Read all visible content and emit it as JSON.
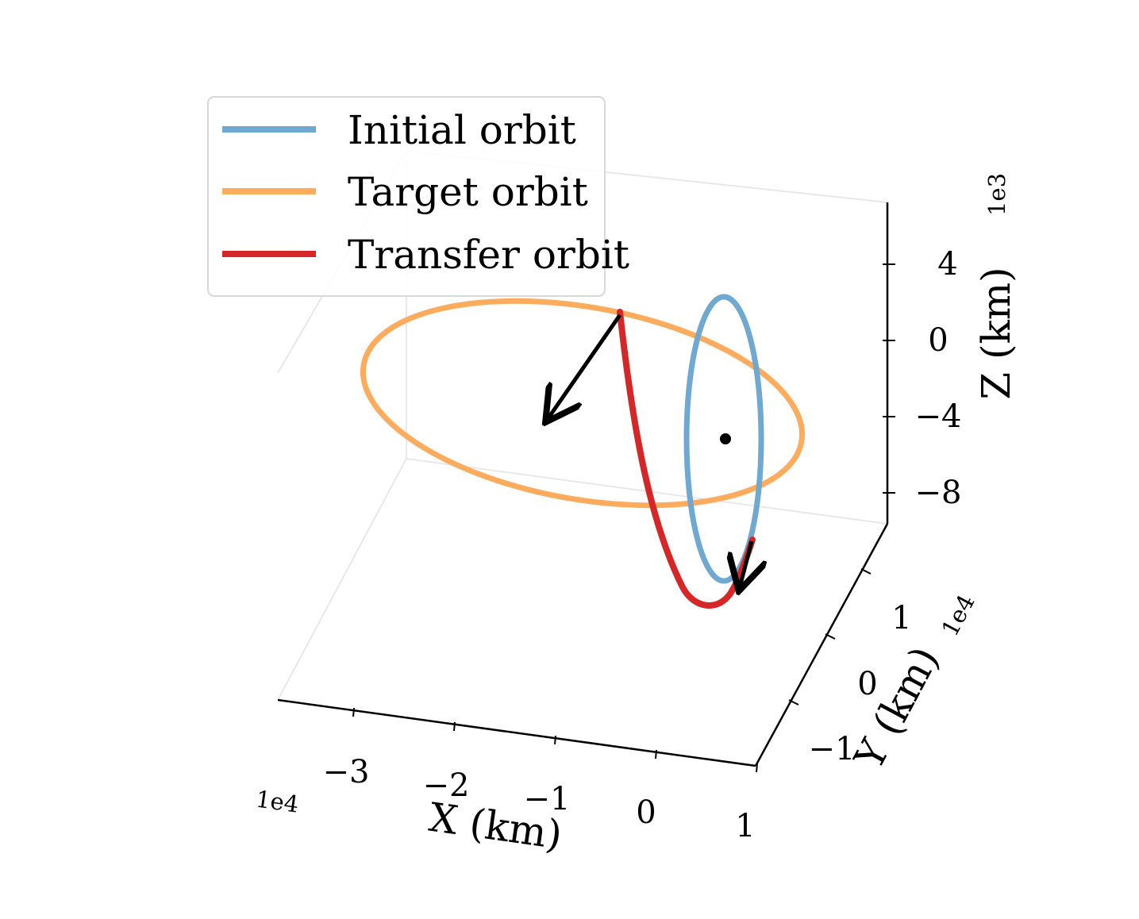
{
  "chart_data": {
    "type": "line",
    "projection": "3d",
    "title": "",
    "axes": {
      "x": {
        "label": "X (km)",
        "offset": "1e4",
        "ticks": [
          "−3",
          "−2",
          "−1",
          "0",
          "1"
        ]
      },
      "y": {
        "label": "Y (km)",
        "offset": "1e4",
        "ticks": [
          "−1",
          "0",
          "1"
        ]
      },
      "z": {
        "label": "Z (km)",
        "offset": "1e3",
        "ticks": [
          "4",
          "0",
          "−4",
          "−8"
        ]
      }
    },
    "grid": false,
    "legend_position": "top-left",
    "series": [
      {
        "name": "Initial orbit",
        "color": "#6fa8d0",
        "shape": "ellipse"
      },
      {
        "name": "Target orbit",
        "color": "#fdac5d",
        "shape": "ellipse"
      },
      {
        "name": "Transfer orbit",
        "color": "#d62728",
        "shape": "arc"
      }
    ],
    "markers": [
      {
        "type": "dot",
        "color": "#000000",
        "note": "central body"
      },
      {
        "type": "arrow",
        "color": "#000000",
        "note": "impulse at target-orbit insertion"
      },
      {
        "type": "arrow",
        "color": "#000000",
        "note": "impulse at initial-orbit departure"
      }
    ]
  }
}
